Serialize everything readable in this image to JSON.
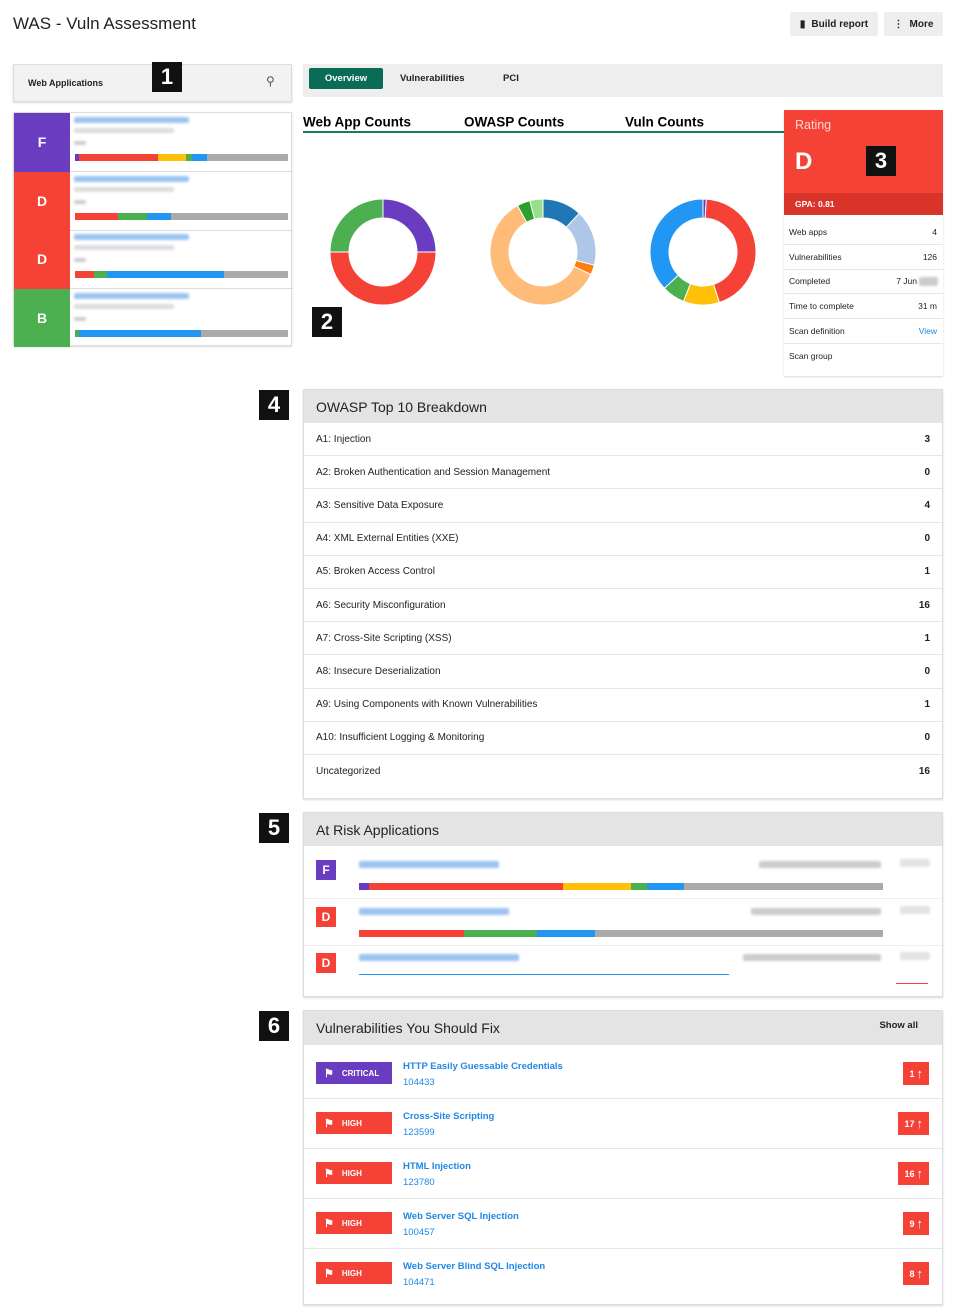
{
  "header": {
    "title": "WAS - Vuln Assessment",
    "buttons": [
      "Build report",
      "More"
    ]
  },
  "segment_colors": [
    "#6a3cc0",
    "#f44336",
    "#ffc107",
    "#4caf50",
    "#2196f3",
    "#aaaaaa"
  ],
  "sidebar": {
    "title": "Web Applications",
    "apps": [
      {
        "grade": "F",
        "color": "#6a3cc0",
        "bar": [
          2,
          37,
          13,
          3,
          7,
          38
        ]
      },
      {
        "grade": "D",
        "color": "#f44336",
        "bar": [
          0,
          20,
          0,
          14,
          11,
          55
        ]
      },
      {
        "grade": "D",
        "color": "#f44336",
        "bar": [
          0,
          9,
          0,
          6,
          55,
          30
        ]
      },
      {
        "grade": "B",
        "color": "#4caf50",
        "bar": [
          0,
          0,
          0,
          2,
          57,
          41
        ]
      }
    ]
  },
  "tabs": [
    "Overview",
    "Vulnerabilities",
    "PCI"
  ],
  "charts": [
    {
      "type": "donut",
      "title": "Web App Counts",
      "values": [
        1,
        2,
        1
      ],
      "colors": [
        "#6a3cc0",
        "#f44336",
        "#4caf50"
      ]
    },
    {
      "type": "donut",
      "title": "OWASP Counts",
      "values": [
        12,
        17,
        3,
        60,
        4,
        4
      ],
      "colors": [
        "#1f77b4",
        "#aec7e8",
        "#ff7f0e",
        "#ffbb78",
        "#2ca02c",
        "#98df8a"
      ]
    },
    {
      "type": "donut",
      "title": "Vuln Counts",
      "values": [
        1,
        44,
        11,
        7,
        37
      ],
      "colors": [
        "#6a3cc0",
        "#f44336",
        "#ffc107",
        "#4caf50",
        "#2196f3"
      ]
    }
  ],
  "rating": {
    "title": "Rating",
    "grade": "D",
    "gpa": "GPA: 0.81",
    "rows": [
      {
        "label": "Web apps",
        "value": 4
      },
      {
        "label": "Vulnerabilities",
        "value": 126
      },
      {
        "label": "Completed",
        "value": "7 Jun"
      },
      {
        "label": "Time to complete",
        "value": "31 m"
      },
      {
        "label": "Scan definition",
        "value": "View"
      },
      {
        "label": "Scan group"
      }
    ]
  },
  "annotations": [
    "1",
    "2",
    "3",
    "4",
    "5",
    "6"
  ],
  "owasp": {
    "title": "OWASP Top 10 Breakdown",
    "rows": [
      {
        "label": "A1: Injection",
        "value": 3
      },
      {
        "label": "A2: Broken Authentication and Session Management",
        "value": 0
      },
      {
        "label": "A3: Sensitive Data Exposure",
        "value": 4
      },
      {
        "label": "A4: XML External Entities (XXE)",
        "value": 0
      },
      {
        "label": "A5: Broken Access Control",
        "value": 1
      },
      {
        "label": "A6: Security Misconfiguration",
        "value": 16
      },
      {
        "label": "A7: Cross-Site Scripting (XSS)",
        "value": 1
      },
      {
        "label": "A8: Insecure Deserialization",
        "value": 0
      },
      {
        "label": "A9: Using Components with Known Vulnerabilities",
        "value": 1
      },
      {
        "label": "A10: Insufficient Logging & Monitoring",
        "value": 0
      },
      {
        "label": "Uncategorized",
        "value": 16
      }
    ]
  },
  "at_risk": {
    "title": "At Risk Applications",
    "grades": [
      "F",
      "D",
      "D"
    ]
  },
  "fix": {
    "title": "Vulnerabilities You Should Fix",
    "action": "Show all",
    "items": [
      {
        "severity": "CRITICAL",
        "color": "#6a3cc0",
        "name": "HTTP Easily Guessable Credentials",
        "id": "104433",
        "count": 1
      },
      {
        "severity": "HIGH",
        "color": "#f44336",
        "name": "Cross-Site Scripting",
        "id": "123599",
        "count": 17
      },
      {
        "severity": "HIGH",
        "color": "#f44336",
        "name": "HTML Injection",
        "id": "123780",
        "count": 16
      },
      {
        "severity": "HIGH",
        "color": "#f44336",
        "name": "Web Server SQL Injection",
        "id": "100457",
        "count": 9
      },
      {
        "severity": "HIGH",
        "color": "#f44336",
        "name": "Web Server Blind SQL Injection",
        "id": "104471",
        "count": 8
      }
    ]
  }
}
